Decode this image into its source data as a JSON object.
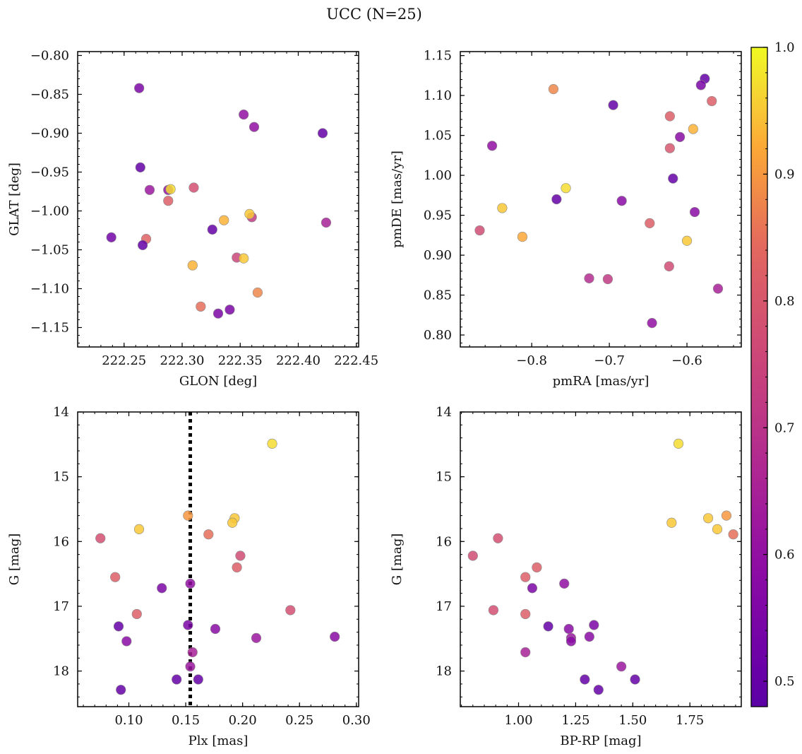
{
  "figure": {
    "title": "UCC (N=25)"
  },
  "colorbar": {
    "min": 0.48,
    "max": 1.0,
    "ticks": [
      0.5,
      0.6,
      0.7,
      0.8,
      0.9,
      1.0
    ],
    "tick_labels": [
      "0.5",
      "0.6",
      "0.7",
      "0.8",
      "0.9",
      "1.0"
    ],
    "colormap": "plasma"
  },
  "chart_data": [
    {
      "type": "scatter",
      "id": "glon-glat",
      "xlabel": "GLON [deg]",
      "ylabel": "GLAT [deg]",
      "xlim": [
        222.21,
        222.452
      ],
      "ylim": [
        -1.175,
        -0.795
      ],
      "y_inverted": false,
      "xticks": [
        222.25,
        222.3,
        222.35,
        222.4,
        222.45
      ],
      "xtick_labels": [
        "222.25",
        "222.30",
        "222.35",
        "222.40",
        "222.45"
      ],
      "yticks": [
        -0.8,
        -0.85,
        -0.9,
        -0.95,
        -1.0,
        -1.05,
        -1.1,
        -1.15
      ],
      "ytick_labels": [
        "−0.80",
        "−0.85",
        "−0.90",
        "−0.95",
        "−1.00",
        "−1.05",
        "−1.10",
        "−1.15"
      ],
      "points": [
        {
          "x": 222.263,
          "y": -0.842,
          "c": 0.55
        },
        {
          "x": 222.353,
          "y": -0.876,
          "c": 0.6
        },
        {
          "x": 222.362,
          "y": -0.892,
          "c": 0.6
        },
        {
          "x": 222.421,
          "y": -0.9,
          "c": 0.5
        },
        {
          "x": 222.264,
          "y": -0.944,
          "c": 0.5
        },
        {
          "x": 222.272,
          "y": -0.973,
          "c": 0.62
        },
        {
          "x": 222.288,
          "y": -0.973,
          "c": 0.6
        },
        {
          "x": 222.29,
          "y": -0.972,
          "c": 0.97
        },
        {
          "x": 222.31,
          "y": -0.97,
          "c": 0.78
        },
        {
          "x": 222.288,
          "y": -0.987,
          "c": 0.82
        },
        {
          "x": 222.36,
          "y": -1.008,
          "c": 0.72
        },
        {
          "x": 222.358,
          "y": -1.004,
          "c": 0.95
        },
        {
          "x": 222.336,
          "y": -1.012,
          "c": 0.93
        },
        {
          "x": 222.326,
          "y": -1.024,
          "c": 0.5
        },
        {
          "x": 222.239,
          "y": -1.034,
          "c": 0.53
        },
        {
          "x": 222.269,
          "y": -1.036,
          "c": 0.83
        },
        {
          "x": 222.266,
          "y": -1.044,
          "c": 0.5
        },
        {
          "x": 222.424,
          "y": -1.015,
          "c": 0.65
        },
        {
          "x": 222.347,
          "y": -1.06,
          "c": 0.75
        },
        {
          "x": 222.353,
          "y": -1.061,
          "c": 0.95
        },
        {
          "x": 222.309,
          "y": -1.07,
          "c": 0.93
        },
        {
          "x": 222.365,
          "y": -1.105,
          "c": 0.88
        },
        {
          "x": 222.316,
          "y": -1.123,
          "c": 0.85
        },
        {
          "x": 222.341,
          "y": -1.127,
          "c": 0.55
        },
        {
          "x": 222.331,
          "y": -1.132,
          "c": 0.55
        }
      ]
    },
    {
      "type": "scatter",
      "id": "pmra-pmde",
      "xlabel": "pmRA [mas/yr]",
      "ylabel": "pmDE [mas/yr]",
      "xlim": [
        -0.892,
        -0.53
      ],
      "ylim": [
        0.785,
        1.155
      ],
      "y_inverted": false,
      "xticks": [
        -0.8,
        -0.7,
        -0.6
      ],
      "xtick_labels": [
        "−0.8",
        "−0.7",
        "−0.6"
      ],
      "yticks": [
        0.8,
        0.85,
        0.9,
        0.95,
        1.0,
        1.05,
        1.1,
        1.15
      ],
      "ytick_labels": [
        "0.80",
        "0.85",
        "0.90",
        "0.95",
        "1.00",
        "1.05",
        "1.10",
        "1.15"
      ],
      "points": [
        {
          "x": -0.577,
          "y": 1.121,
          "c": 0.5
        },
        {
          "x": -0.772,
          "y": 1.108,
          "c": 0.88
        },
        {
          "x": -0.582,
          "y": 1.113,
          "c": 0.55
        },
        {
          "x": -0.568,
          "y": 1.093,
          "c": 0.82
        },
        {
          "x": -0.695,
          "y": 1.088,
          "c": 0.5
        },
        {
          "x": -0.622,
          "y": 1.074,
          "c": 0.82
        },
        {
          "x": -0.592,
          "y": 1.058,
          "c": 0.93
        },
        {
          "x": -0.609,
          "y": 1.048,
          "c": 0.58
        },
        {
          "x": -0.851,
          "y": 1.037,
          "c": 0.6
        },
        {
          "x": -0.622,
          "y": 1.034,
          "c": 0.8
        },
        {
          "x": -0.618,
          "y": 0.996,
          "c": 0.5
        },
        {
          "x": -0.756,
          "y": 0.984,
          "c": 0.97
        },
        {
          "x": -0.768,
          "y": 0.97,
          "c": 0.5
        },
        {
          "x": -0.684,
          "y": 0.968,
          "c": 0.58
        },
        {
          "x": -0.838,
          "y": 0.959,
          "c": 0.95
        },
        {
          "x": -0.59,
          "y": 0.954,
          "c": 0.58
        },
        {
          "x": -0.648,
          "y": 0.94,
          "c": 0.82
        },
        {
          "x": -0.867,
          "y": 0.931,
          "c": 0.77
        },
        {
          "x": -0.812,
          "y": 0.923,
          "c": 0.92
        },
        {
          "x": -0.6,
          "y": 0.918,
          "c": 0.95
        },
        {
          "x": -0.623,
          "y": 0.886,
          "c": 0.77
        },
        {
          "x": -0.726,
          "y": 0.871,
          "c": 0.68
        },
        {
          "x": -0.702,
          "y": 0.87,
          "c": 0.72
        },
        {
          "x": -0.56,
          "y": 0.858,
          "c": 0.65
        },
        {
          "x": -0.645,
          "y": 0.815,
          "c": 0.6
        }
      ]
    },
    {
      "type": "scatter",
      "id": "plx-g",
      "xlabel": "Plx [mas]",
      "ylabel": "G [mag]",
      "xlim": [
        0.055,
        0.302
      ],
      "ylim": [
        14.0,
        18.55
      ],
      "y_inverted": true,
      "xticks": [
        0.1,
        0.15,
        0.2,
        0.25,
        0.3
      ],
      "xtick_labels": [
        "0.10",
        "0.15",
        "0.20",
        "0.25",
        "0.30"
      ],
      "yticks": [
        14,
        15,
        16,
        17,
        18
      ],
      "ytick_labels": [
        "14",
        "15",
        "16",
        "17",
        "18"
      ],
      "vline": {
        "x": 0.154,
        "style": "dotted"
      },
      "points": [
        {
          "x": 0.226,
          "y": 14.49,
          "c": 0.97
        },
        {
          "x": 0.152,
          "y": 15.6,
          "c": 0.9
        },
        {
          "x": 0.193,
          "y": 15.64,
          "c": 0.95
        },
        {
          "x": 0.191,
          "y": 15.71,
          "c": 0.95
        },
        {
          "x": 0.109,
          "y": 15.81,
          "c": 0.95
        },
        {
          "x": 0.17,
          "y": 15.89,
          "c": 0.85
        },
        {
          "x": 0.075,
          "y": 15.95,
          "c": 0.78
        },
        {
          "x": 0.198,
          "y": 16.22,
          "c": 0.77
        },
        {
          "x": 0.195,
          "y": 16.4,
          "c": 0.82
        },
        {
          "x": 0.088,
          "y": 16.55,
          "c": 0.82
        },
        {
          "x": 0.154,
          "y": 16.65,
          "c": 0.6
        },
        {
          "x": 0.129,
          "y": 16.72,
          "c": 0.55
        },
        {
          "x": 0.242,
          "y": 17.06,
          "c": 0.78
        },
        {
          "x": 0.107,
          "y": 17.12,
          "c": 0.82
        },
        {
          "x": 0.091,
          "y": 17.31,
          "c": 0.5
        },
        {
          "x": 0.152,
          "y": 17.29,
          "c": 0.55
        },
        {
          "x": 0.176,
          "y": 17.35,
          "c": 0.58
        },
        {
          "x": 0.281,
          "y": 17.47,
          "c": 0.58
        },
        {
          "x": 0.212,
          "y": 17.49,
          "c": 0.62
        },
        {
          "x": 0.098,
          "y": 17.54,
          "c": 0.58
        },
        {
          "x": 0.156,
          "y": 17.71,
          "c": 0.65
        },
        {
          "x": 0.154,
          "y": 17.93,
          "c": 0.62
        },
        {
          "x": 0.142,
          "y": 18.13,
          "c": 0.5
        },
        {
          "x": 0.161,
          "y": 18.13,
          "c": 0.5
        },
        {
          "x": 0.093,
          "y": 18.29,
          "c": 0.5
        }
      ]
    },
    {
      "type": "scatter",
      "id": "bprp-g",
      "xlabel": "BP-RP [mag]",
      "ylabel": "G [mag]",
      "xlim": [
        0.745,
        1.975
      ],
      "ylim": [
        14.0,
        18.55
      ],
      "y_inverted": true,
      "xticks": [
        1.0,
        1.25,
        1.5,
        1.75
      ],
      "xtick_labels": [
        "1.00",
        "1.25",
        "1.50",
        "1.75"
      ],
      "yticks": [
        14,
        15,
        16,
        17,
        18
      ],
      "ytick_labels": [
        "14",
        "15",
        "16",
        "17",
        "18"
      ],
      "points": [
        {
          "x": 1.7,
          "y": 14.49,
          "c": 0.97
        },
        {
          "x": 1.91,
          "y": 15.6,
          "c": 0.9
        },
        {
          "x": 1.83,
          "y": 15.64,
          "c": 0.95
        },
        {
          "x": 1.67,
          "y": 15.71,
          "c": 0.95
        },
        {
          "x": 1.87,
          "y": 15.81,
          "c": 0.95
        },
        {
          "x": 1.94,
          "y": 15.89,
          "c": 0.85
        },
        {
          "x": 0.91,
          "y": 15.95,
          "c": 0.78
        },
        {
          "x": 0.8,
          "y": 16.22,
          "c": 0.77
        },
        {
          "x": 1.08,
          "y": 16.4,
          "c": 0.82
        },
        {
          "x": 1.03,
          "y": 16.55,
          "c": 0.82
        },
        {
          "x": 1.2,
          "y": 16.65,
          "c": 0.6
        },
        {
          "x": 1.06,
          "y": 16.72,
          "c": 0.55
        },
        {
          "x": 0.89,
          "y": 17.06,
          "c": 0.78
        },
        {
          "x": 1.03,
          "y": 17.12,
          "c": 0.82
        },
        {
          "x": 1.13,
          "y": 17.31,
          "c": 0.5
        },
        {
          "x": 1.33,
          "y": 17.29,
          "c": 0.55
        },
        {
          "x": 1.22,
          "y": 17.35,
          "c": 0.58
        },
        {
          "x": 1.31,
          "y": 17.47,
          "c": 0.58
        },
        {
          "x": 1.23,
          "y": 17.49,
          "c": 0.62
        },
        {
          "x": 1.23,
          "y": 17.54,
          "c": 0.58
        },
        {
          "x": 1.03,
          "y": 17.71,
          "c": 0.65
        },
        {
          "x": 1.45,
          "y": 17.93,
          "c": 0.62
        },
        {
          "x": 1.29,
          "y": 18.13,
          "c": 0.5
        },
        {
          "x": 1.51,
          "y": 18.13,
          "c": 0.5
        },
        {
          "x": 1.35,
          "y": 18.29,
          "c": 0.5
        }
      ]
    }
  ]
}
